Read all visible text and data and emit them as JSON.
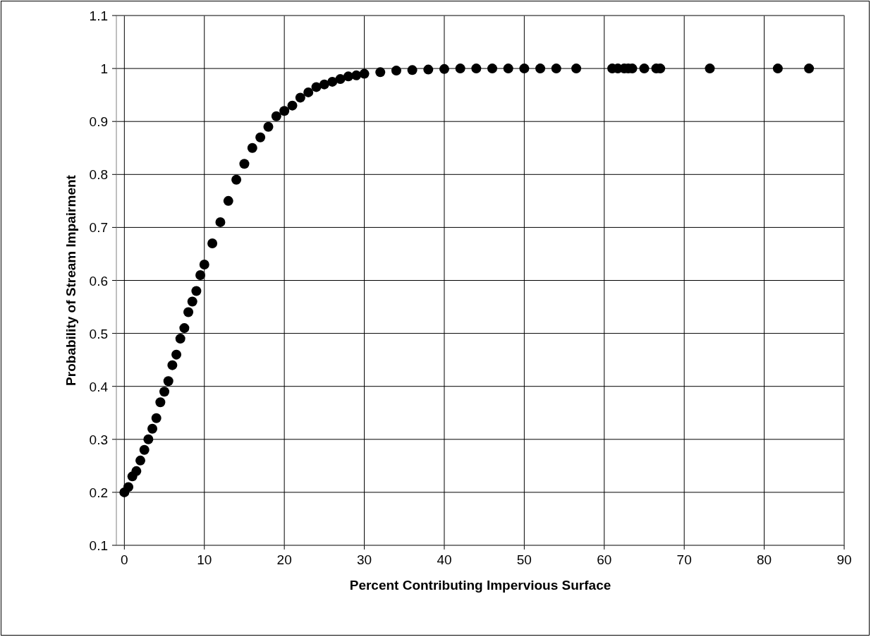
{
  "chart_data": {
    "type": "scatter",
    "xlabel": "Percent Contributing Impervious Surface",
    "ylabel": "Probability of Stream Impairment",
    "x": [
      0,
      0.5,
      1,
      1.5,
      2,
      2.5,
      3,
      3.5,
      4,
      4.5,
      5,
      5.5,
      6,
      6.5,
      7,
      7.5,
      8,
      8.5,
      9,
      9.5,
      10,
      11,
      12,
      13,
      14,
      15,
      16,
      17,
      18,
      19,
      20,
      21,
      22,
      23,
      24,
      25,
      26,
      27,
      28,
      29,
      30,
      32,
      34,
      36,
      38,
      40,
      42,
      44,
      46,
      48,
      50,
      52,
      54,
      56.5,
      61,
      61.7,
      62.5,
      63,
      63.5,
      65,
      66.5,
      67,
      73.2,
      81.7,
      85.6
    ],
    "series": [
      {
        "color": "#000000",
        "values": [
          0.2,
          0.21,
          0.23,
          0.24,
          0.26,
          0.28,
          0.3,
          0.32,
          0.34,
          0.37,
          0.39,
          0.41,
          0.44,
          0.46,
          0.49,
          0.51,
          0.54,
          0.56,
          0.58,
          0.61,
          0.63,
          0.67,
          0.71,
          0.75,
          0.79,
          0.82,
          0.85,
          0.87,
          0.89,
          0.91,
          0.92,
          0.93,
          0.945,
          0.955,
          0.965,
          0.97,
          0.975,
          0.98,
          0.985,
          0.987,
          0.99,
          0.993,
          0.996,
          0.997,
          0.998,
          0.999,
          1,
          1,
          1,
          1,
          1,
          1,
          1,
          1,
          1,
          1,
          1,
          1,
          1,
          1,
          1,
          1,
          1,
          1,
          1
        ]
      }
    ],
    "xlim": [
      -1,
      90
    ],
    "xticks": [
      0,
      10,
      20,
      30,
      40,
      50,
      60,
      70,
      80,
      90
    ],
    "ylim": [
      0.1,
      1.1
    ],
    "yticks": [
      0.1,
      0.2,
      0.3,
      0.4,
      0.5,
      0.6,
      0.7,
      0.8,
      0.9,
      1,
      1.1
    ],
    "grid": true,
    "marker": "circle"
  }
}
